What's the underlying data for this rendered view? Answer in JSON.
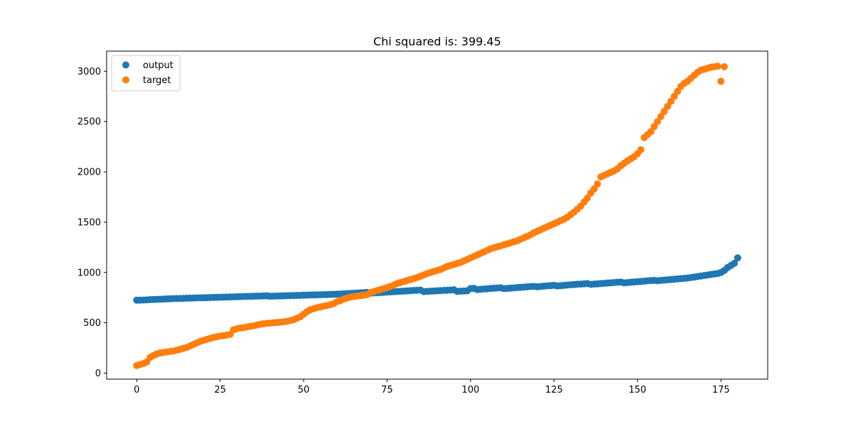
{
  "chart_data": {
    "type": "scatter",
    "title": "Chi squared is: 399.45",
    "xlabel": "",
    "ylabel": "",
    "xlim": [
      -9,
      189
    ],
    "ylim": [
      -60,
      3200
    ],
    "xticks": [
      0,
      25,
      50,
      75,
      100,
      125,
      150,
      175
    ],
    "yticks": [
      0,
      500,
      1000,
      1500,
      2000,
      2500,
      3000
    ],
    "grid": false,
    "legend": "top-left",
    "series": [
      {
        "name": "output",
        "color": "#1f77b4",
        "x_start": 0,
        "x_step": 1,
        "values": [
          725,
          725,
          726,
          728,
          730,
          731,
          733,
          734,
          736,
          737,
          739,
          740,
          741,
          742,
          743,
          744,
          745,
          746,
          747,
          748,
          749,
          750,
          751,
          752,
          753,
          754,
          755,
          756,
          757,
          758,
          759,
          760,
          761,
          762,
          763,
          764,
          765,
          766,
          767,
          768,
          764,
          765,
          766,
          767,
          768,
          769,
          770,
          771,
          772,
          773,
          774,
          775,
          776,
          777,
          778,
          779,
          780,
          781,
          782,
          783,
          784,
          786,
          788,
          790,
          792,
          794,
          796,
          798,
          800,
          802,
          795,
          797,
          799,
          801,
          803,
          805,
          807,
          809,
          811,
          813,
          815,
          817,
          819,
          821,
          823,
          825,
          810,
          812,
          814,
          816,
          818,
          820,
          822,
          824,
          826,
          828,
          812,
          814,
          816,
          818,
          840,
          842,
          830,
          833,
          836,
          838,
          841,
          843,
          846,
          848,
          840,
          842,
          845,
          847,
          850,
          852,
          855,
          857,
          860,
          862,
          858,
          861,
          864,
          867,
          870,
          872,
          866,
          869,
          872,
          875,
          878,
          880,
          883,
          885,
          887,
          890,
          882,
          885,
          887,
          890,
          892,
          895,
          897,
          900,
          903,
          905,
          897,
          900,
          903,
          906,
          908,
          911,
          914,
          917,
          920,
          922,
          918,
          921,
          924,
          927,
          930,
          933,
          936,
          939,
          942,
          945,
          950,
          955,
          960,
          965,
          970,
          975,
          980,
          985,
          990,
          1000,
          1020,
          1050,
          1070,
          1090,
          1145
        ]
      },
      {
        "name": "target",
        "color": "#ff7f0e",
        "x_start": 0,
        "x_step": 1,
        "values": [
          75,
          85,
          95,
          110,
          155,
          175,
          190,
          200,
          205,
          210,
          215,
          220,
          228,
          236,
          245,
          255,
          270,
          285,
          300,
          315,
          325,
          335,
          345,
          355,
          362,
          368,
          372,
          378,
          385,
          430,
          440,
          448,
          452,
          458,
          465,
          470,
          478,
          485,
          490,
          495,
          497,
          500,
          503,
          506,
          510,
          515,
          522,
          530,
          545,
          560,
          585,
          610,
          630,
          640,
          650,
          658,
          665,
          672,
          680,
          690,
          710,
          720,
          735,
          745,
          755,
          760,
          765,
          770,
          775,
          780,
          800,
          810,
          820,
          830,
          840,
          850,
          862,
          875,
          890,
          900,
          910,
          920,
          930,
          940,
          950,
          962,
          975,
          990,
          1000,
          1010,
          1020,
          1030,
          1045,
          1060,
          1070,
          1080,
          1090,
          1100,
          1115,
          1130,
          1145,
          1160,
          1175,
          1190,
          1205,
          1220,
          1235,
          1245,
          1255,
          1265,
          1275,
          1285,
          1295,
          1305,
          1315,
          1330,
          1345,
          1360,
          1375,
          1395,
          1410,
          1425,
          1440,
          1455,
          1470,
          1485,
          1500,
          1515,
          1530,
          1550,
          1575,
          1600,
          1630,
          1660,
          1700,
          1740,
          1790,
          1830,
          1880,
          1950,
          1965,
          1980,
          1995,
          2010,
          2030,
          2060,
          2085,
          2110,
          2130,
          2150,
          2180,
          2220,
          2340,
          2370,
          2400,
          2450,
          2500,
          2550,
          2600,
          2650,
          2700,
          2750,
          2800,
          2850,
          2880,
          2900,
          2930,
          2960,
          2990,
          3010,
          3020,
          3030,
          3040,
          3045,
          3050,
          2900,
          3045
        ]
      }
    ]
  }
}
